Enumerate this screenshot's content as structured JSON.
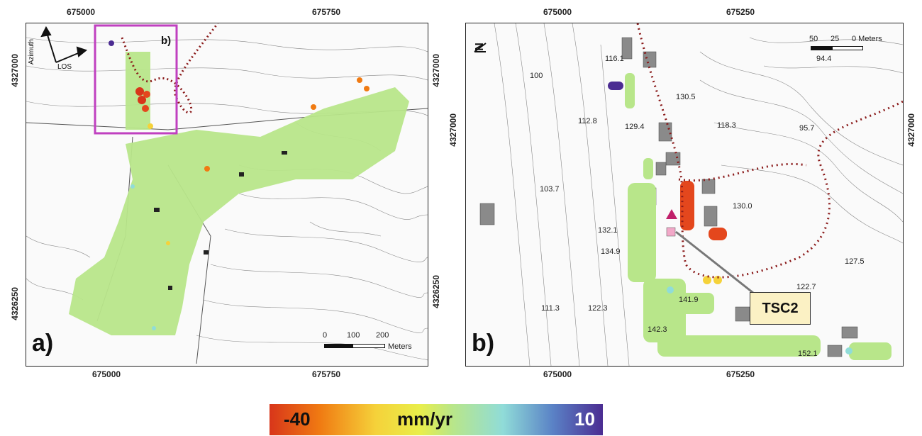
{
  "panel_a": {
    "label": "a)",
    "inset_label": "b)",
    "x_ticks": [
      "675000",
      "675750"
    ],
    "y_ticks": [
      "4327000",
      "4326250"
    ],
    "arrows": {
      "azimuth": "Azimuth",
      "los": "LOS"
    },
    "scale": {
      "ticks": [
        "0",
        "100",
        "200"
      ],
      "unit": "Meters"
    }
  },
  "panel_b": {
    "label": "b)",
    "x_ticks": [
      "675000",
      "675250"
    ],
    "y_ticks": [
      "4327000"
    ],
    "north": "N",
    "scale": {
      "ticks": [
        "50",
        "25",
        "0 Meters"
      ],
      "value": "94.4"
    },
    "elevations": [
      "116.1",
      "100",
      "130.5",
      "112.8",
      "129.4",
      "118.3",
      "95.7",
      "103.7",
      "130.0",
      "132.1",
      "134.9",
      "127.5",
      "122.7",
      "141.9",
      "111.3",
      "122.3",
      "142.3",
      "152.1"
    ],
    "callout": "TSC2"
  },
  "colorbar": {
    "min": "-40",
    "unit": "mm/yr",
    "max": "10",
    "colors": [
      "#d8361a",
      "#f07a12",
      "#f5d23a",
      "#b8e68a",
      "#90dcd8",
      "#5a82c6",
      "#4b2c92"
    ]
  }
}
